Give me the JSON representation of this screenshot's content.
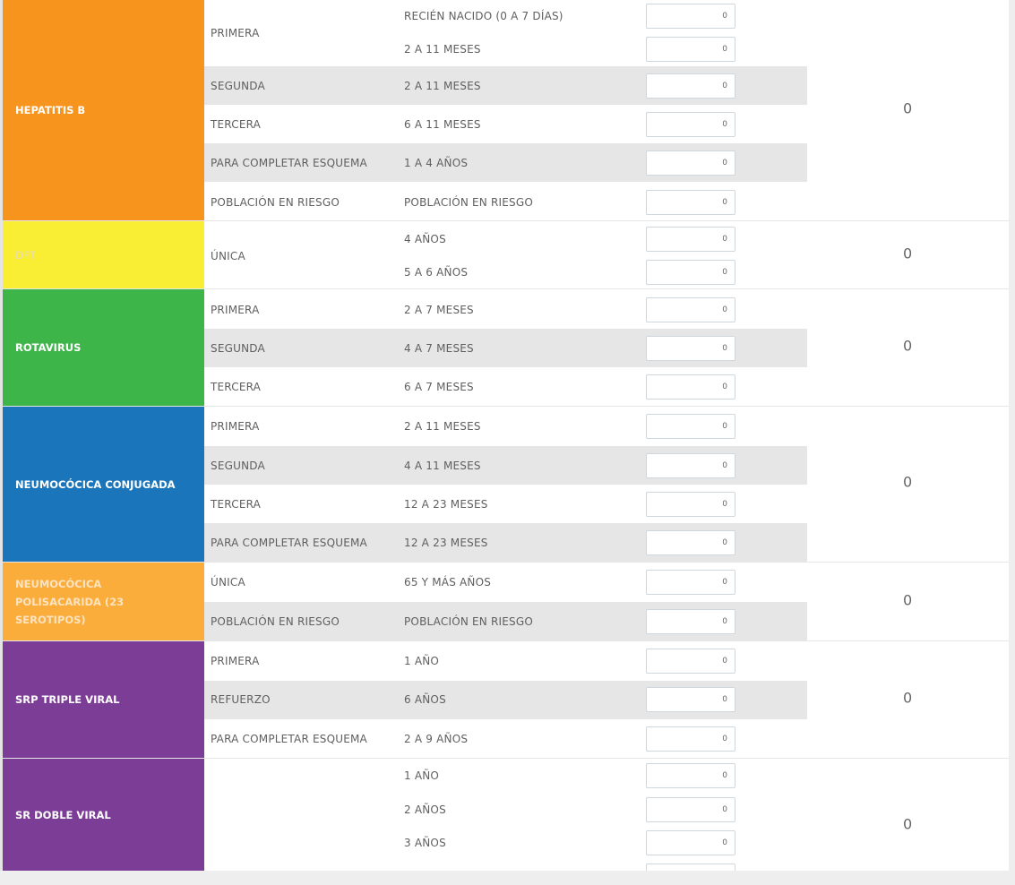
{
  "groups": [
    {
      "vaccine": "HEPATITIS B",
      "color": "#f7941d",
      "total": "0",
      "rows": [
        {
          "dose": "PRIMERA",
          "age": "RECIÉN NACIDO (0 A 7 DÍAS)",
          "value": "0"
        },
        {
          "dose": "",
          "age": "2 A 11 MESES",
          "value": "0"
        },
        {
          "dose": "SEGUNDA",
          "age": "2 A 11 MESES",
          "value": "0"
        },
        {
          "dose": "TERCERA",
          "age": "6 A 11 MESES",
          "value": "0"
        },
        {
          "dose": "PARA COMPLETAR ESQUEMA",
          "age": "1 A 4 AÑOS",
          "value": "0"
        },
        {
          "dose": "POBLACIÓN EN RIESGO",
          "age": "POBLACIÓN EN RIESGO",
          "value": "0"
        }
      ]
    },
    {
      "vaccine": "DPT",
      "color": "#f9ee33",
      "total": "0",
      "rows": [
        {
          "dose": "ÚNICA",
          "age": "4 AÑOS",
          "value": "0"
        },
        {
          "dose": "",
          "age": "5 A 6 AÑOS",
          "value": "0"
        }
      ]
    },
    {
      "vaccine": "ROTAVIRUS",
      "color": "#3db549",
      "total": "0",
      "rows": [
        {
          "dose": "PRIMERA",
          "age": "2 A 7 MESES",
          "value": "0"
        },
        {
          "dose": "SEGUNDA",
          "age": "4 A 7 MESES",
          "value": "0"
        },
        {
          "dose": "TERCERA",
          "age": "6 A 7 MESES",
          "value": "0"
        }
      ]
    },
    {
      "vaccine": "NEUMOCÓCICA CONJUGADA",
      "color": "#1b75bb",
      "total": "0",
      "rows": [
        {
          "dose": "PRIMERA",
          "age": "2 A 11 MESES",
          "value": "0"
        },
        {
          "dose": "SEGUNDA",
          "age": "4 A 11 MESES",
          "value": "0"
        },
        {
          "dose": "TERCERA",
          "age": "12 A 23 MESES",
          "value": "0"
        },
        {
          "dose": "PARA COMPLETAR ESQUEMA",
          "age": "12 A 23 MESES",
          "value": "0"
        }
      ]
    },
    {
      "vaccine": "NEUMOCÓCICA POLISACARIDA (23 SEROTIPOS)",
      "color": "#fbad3c",
      "total": "0",
      "rows": [
        {
          "dose": "ÚNICA",
          "age": "65 Y MÁS AÑOS",
          "value": "0"
        },
        {
          "dose": "POBLACIÓN EN RIESGO",
          "age": "POBLACIÓN EN RIESGO",
          "value": "0"
        }
      ]
    },
    {
      "vaccine": "SRP TRIPLE VIRAL",
      "color": "#7c3d96",
      "total": "0",
      "rows": [
        {
          "dose": "PRIMERA",
          "age": "1 AÑO",
          "value": "0"
        },
        {
          "dose": "REFUERZO",
          "age": "6 AÑOS",
          "value": "0"
        },
        {
          "dose": "PARA COMPLETAR ESQUEMA",
          "age": "2 A 9 AÑOS",
          "value": "0"
        }
      ]
    },
    {
      "vaccine": "SR DOBLE VIRAL",
      "color": "#7c3d96",
      "total": "0",
      "rows": [
        {
          "dose": "",
          "age": "1 AÑO",
          "value": "0"
        },
        {
          "dose": "",
          "age": "2 AÑOS",
          "value": "0"
        },
        {
          "dose": "",
          "age": "3 AÑOS",
          "value": "0"
        },
        {
          "dose": "",
          "age": "",
          "value": ""
        }
      ]
    }
  ]
}
